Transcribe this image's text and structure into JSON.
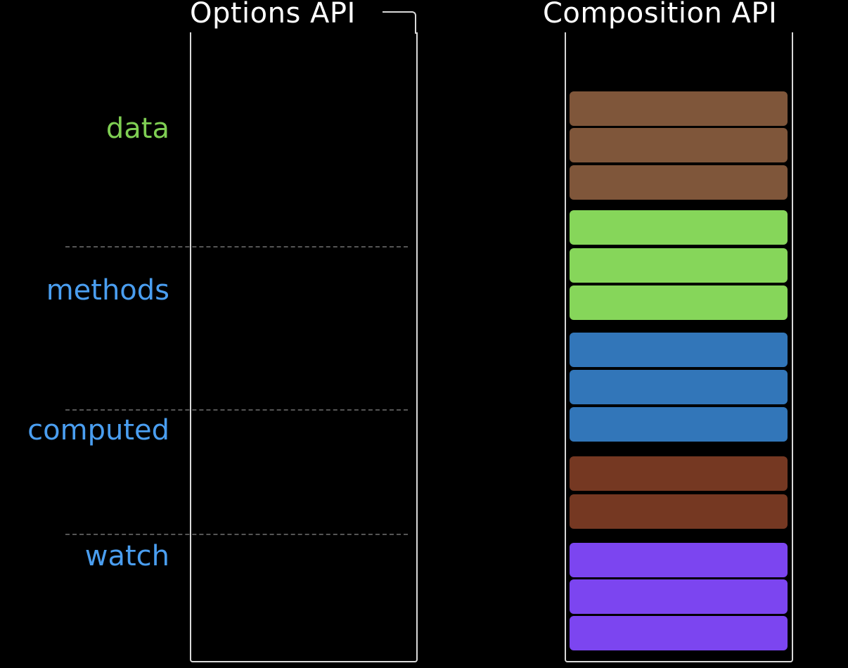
{
  "columns": {
    "options_title": "Options API",
    "composition_title": "Composition API"
  },
  "option_labels": [
    {
      "label": "data",
      "color": "#7fcf53"
    },
    {
      "label": "methods",
      "color": "#4a9ef0"
    },
    {
      "label": "computed",
      "color": "#4a9ef0"
    },
    {
      "label": "watch",
      "color": "#4a9ef0"
    }
  ],
  "composition_groups": [
    {
      "color": "#7f563a",
      "count": 3
    },
    {
      "color": "#86d65a",
      "count": 3
    },
    {
      "color": "#3276b9",
      "count": 3
    },
    {
      "color": "#753822",
      "count": 2
    },
    {
      "color": "#7c45f0",
      "count": 3
    }
  ]
}
